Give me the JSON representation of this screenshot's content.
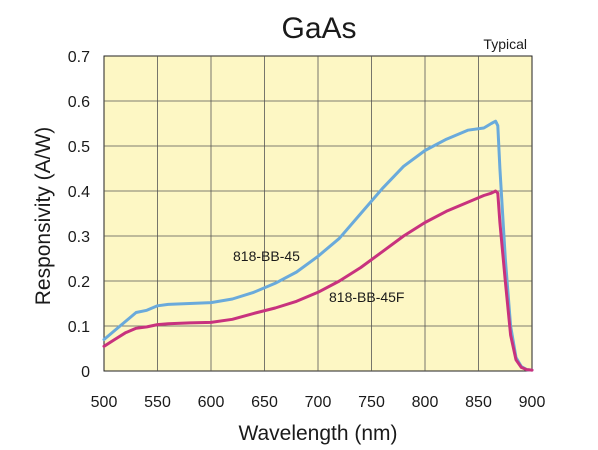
{
  "chart_data": {
    "type": "line",
    "title": "GaAs",
    "annotation": "Typical",
    "xlabel": "Wavelength (nm)",
    "ylabel": "Responsivity (A/W)",
    "xlim": [
      500,
      900
    ],
    "ylim": [
      0,
      0.7
    ],
    "xticks": [
      500,
      550,
      600,
      650,
      700,
      750,
      800,
      850,
      900
    ],
    "yticks": [
      0,
      0.1,
      0.2,
      0.3,
      0.4,
      0.5,
      0.6,
      0.7
    ],
    "grid": true,
    "background": "#fdf7c4",
    "series": [
      {
        "name": "818-BB-45",
        "color": "#6aaadb",
        "x": [
          500,
          510,
          520,
          530,
          540,
          550,
          560,
          580,
          600,
          620,
          640,
          660,
          680,
          700,
          720,
          740,
          760,
          780,
          800,
          820,
          840,
          855,
          862,
          866,
          868,
          870,
          875,
          880,
          885,
          890,
          895,
          900
        ],
        "y": [
          0.07,
          0.09,
          0.11,
          0.13,
          0.135,
          0.145,
          0.148,
          0.15,
          0.152,
          0.16,
          0.175,
          0.195,
          0.22,
          0.255,
          0.295,
          0.35,
          0.405,
          0.455,
          0.49,
          0.515,
          0.535,
          0.54,
          0.55,
          0.555,
          0.545,
          0.45,
          0.25,
          0.1,
          0.03,
          0.01,
          0.003,
          0.002
        ]
      },
      {
        "name": "818-BB-45F",
        "color": "#c8327e",
        "x": [
          500,
          510,
          520,
          530,
          540,
          550,
          560,
          580,
          600,
          620,
          640,
          660,
          680,
          700,
          720,
          740,
          760,
          780,
          800,
          820,
          840,
          855,
          862,
          866,
          868,
          870,
          875,
          880,
          885,
          890,
          895,
          900
        ],
        "y": [
          0.055,
          0.07,
          0.085,
          0.095,
          0.098,
          0.103,
          0.105,
          0.107,
          0.108,
          0.115,
          0.128,
          0.14,
          0.155,
          0.175,
          0.2,
          0.23,
          0.265,
          0.3,
          0.33,
          0.355,
          0.375,
          0.39,
          0.395,
          0.4,
          0.395,
          0.33,
          0.2,
          0.08,
          0.025,
          0.008,
          0.003,
          0.002
        ]
      }
    ]
  }
}
